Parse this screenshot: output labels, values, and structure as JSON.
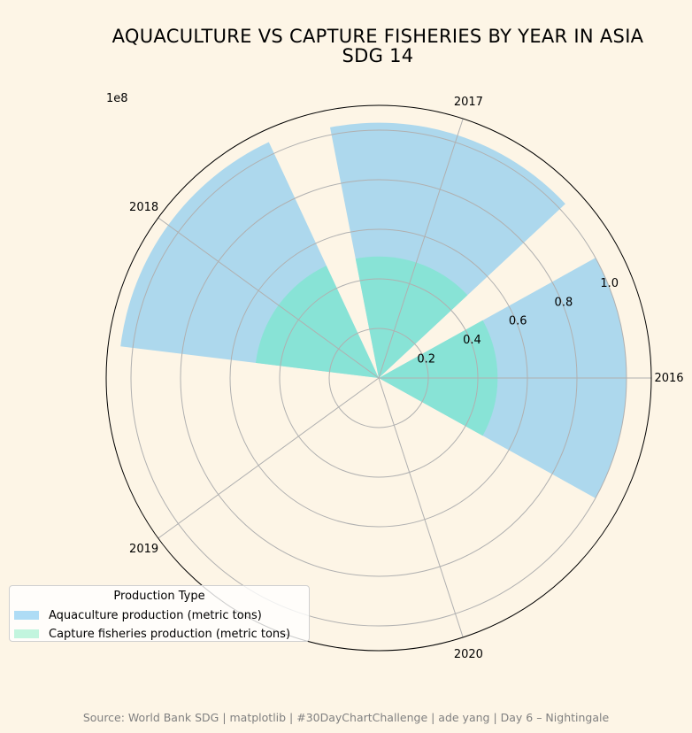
{
  "chart_data": {
    "type": "polar-bar",
    "title_line1": "AQUACULTURE VS CAPTURE FISHERIES BY YEAR IN ASIA",
    "title_line2": "SDG 14",
    "scale_label": "1e8",
    "categories": [
      "2016",
      "2017",
      "2018",
      "2019",
      "2020"
    ],
    "radial_ticks": [
      "0.2",
      "0.4",
      "0.6",
      "0.8",
      "1.0"
    ],
    "radial_tick_values": [
      0.2,
      0.4,
      0.6,
      0.8,
      1.0
    ],
    "rmax": 1.1,
    "series": [
      {
        "name": "Aquaculture production (metric tons)",
        "color": "#add8ed",
        "values": [
          1.0,
          1.03,
          1.05,
          0,
          0
        ]
      },
      {
        "name": "Capture fisheries production (metric tons)",
        "color": "#88e3d6",
        "values": [
          0.48,
          0.49,
          0.5,
          0,
          0
        ]
      }
    ],
    "grid": true,
    "legend_title": "Production Type",
    "legend_position": "lower-left",
    "legend_swatch_colors": [
      "#aedcf5",
      "#c2f5de"
    ]
  },
  "source_text": "Source: World Bank SDG | matplotlib | #30DayChartChallenge | ade yang | Day 6 – Nightingale"
}
